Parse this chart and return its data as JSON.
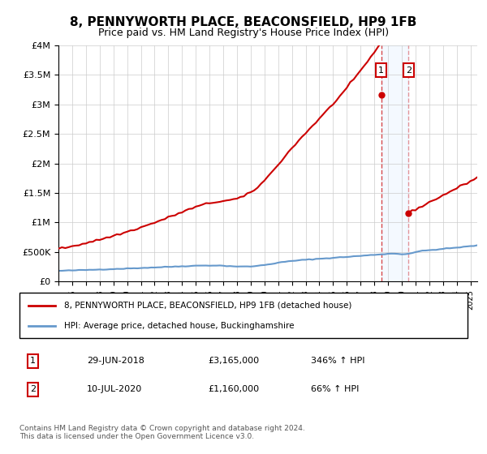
{
  "title": "8, PENNYWORTH PLACE, BEACONSFIELD, HP9 1FB",
  "subtitle": "Price paid vs. HM Land Registry's House Price Index (HPI)",
  "property_label": "8, PENNYWORTH PLACE, BEACONSFIELD, HP9 1FB (detached house)",
  "hpi_label": "HPI: Average price, detached house, Buckinghamshire",
  "transaction1": {
    "label": "1",
    "date": "29-JUN-2018",
    "price": "£3,165,000",
    "hpi": "346% ↑ HPI"
  },
  "transaction2": {
    "label": "2",
    "date": "10-JUL-2020",
    "price": "£1,160,000",
    "hpi": "66% ↑ HPI"
  },
  "footer": "Contains HM Land Registry data © Crown copyright and database right 2024.\nThis data is licensed under the Open Government Licence v3.0.",
  "property_color": "#cc0000",
  "hpi_color": "#6699cc",
  "shaded_region_color": "#ddeeff",
  "marker1_x": 2018.5,
  "marker2_x": 2020.5,
  "ylim_min": 0,
  "ylim_max": 4000000,
  "xlim_min": 1995,
  "xlim_max": 2025.5,
  "yticks": [
    0,
    500000,
    1000000,
    1500000,
    2000000,
    2500000,
    3000000,
    3500000,
    4000000
  ],
  "ytick_labels": [
    "£0",
    "£500K",
    "£1M",
    "£1.5M",
    "£2M",
    "£2.5M",
    "£3M",
    "£3.5M",
    "£4M"
  ]
}
